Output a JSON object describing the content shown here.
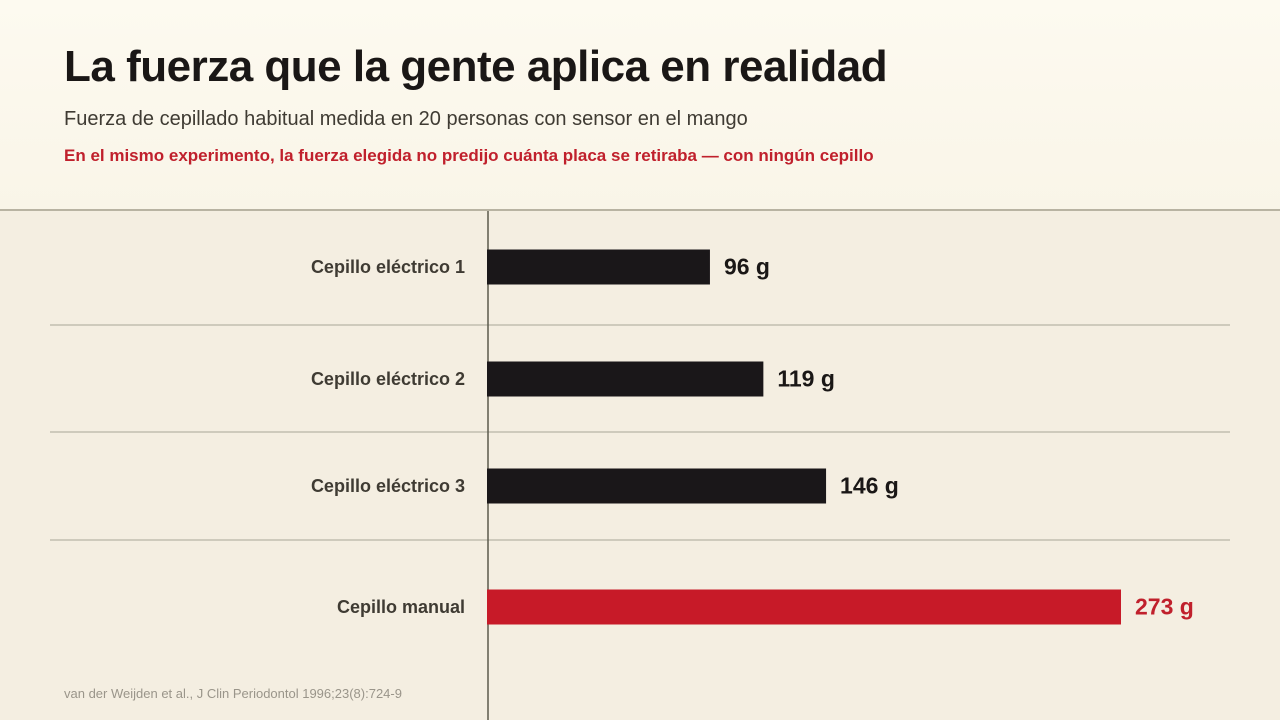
{
  "title": "La fuerza que la gente aplica en realidad",
  "subtitle": "Fuerza de cepillado habitual medida en 20 personas con sensor en el mango",
  "note": "En el mismo experimento, la fuerza elegida no predijo cuánta placa se retiraba — con ningún cepillo",
  "source": "van der Weijden et al., J Clin Periodontol 1996;23(8):724-9",
  "colors": {
    "bar_default": "#1a1719",
    "bar_highlight": "#c71a28",
    "category_text": "#3f3b33",
    "value_text": "#1a1716",
    "highlight_text": "#c0202c",
    "grid": "#a9a696",
    "axis": "#5c5a4c"
  },
  "chart_data": {
    "type": "bar",
    "orientation": "horizontal",
    "categories": [
      "Cepillo eléctrico 1",
      "Cepillo eléctrico 2",
      "Cepillo eléctrico 3",
      "Cepillo manual"
    ],
    "values": [
      96,
      119,
      146,
      273
    ],
    "value_labels": [
      "96 g",
      "119 g",
      "146 g",
      "273 g"
    ],
    "highlight": [
      false,
      false,
      false,
      true
    ],
    "unit": "g",
    "xlim": [
      0,
      273
    ],
    "grid": true
  }
}
